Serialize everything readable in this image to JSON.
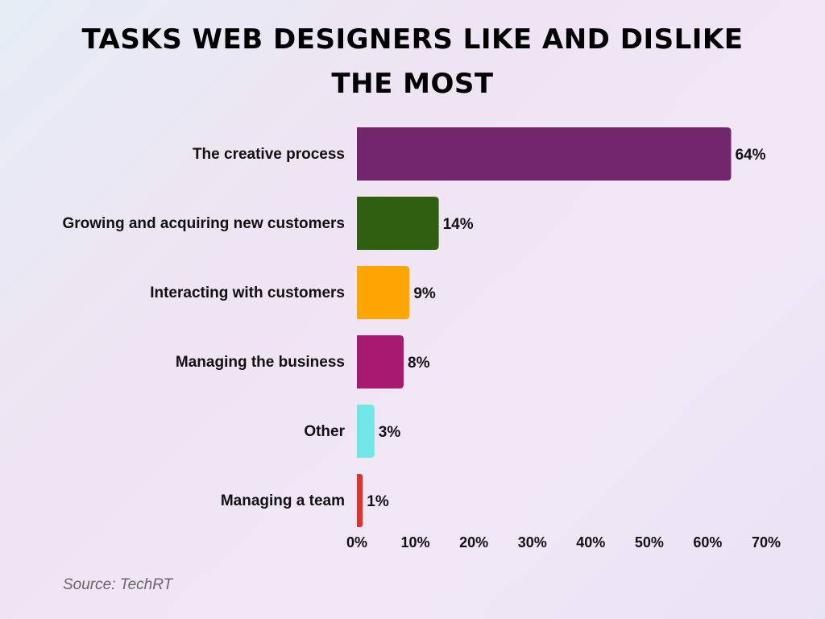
{
  "chart_data": {
    "type": "bar",
    "orientation": "horizontal",
    "title": "TASKS WEB DESIGNERS LIKE AND DISLIKE THE MOST",
    "categories": [
      "The creative process",
      "Growing and acquiring new customers",
      "Interacting with customers",
      "Managing the business",
      "Other",
      "Managing a team"
    ],
    "values": [
      64,
      14,
      9,
      8,
      3,
      1
    ],
    "value_labels": [
      "64%",
      "14%",
      "9%",
      "8%",
      "3%",
      "1%"
    ],
    "colors": [
      "#72266e",
      "#2f5f11",
      "#fca503",
      "#a81a72",
      "#71e6e6",
      "#d8362e"
    ],
    "x_ticks": [
      0,
      10,
      20,
      30,
      40,
      50,
      60,
      70
    ],
    "x_tick_labels": [
      "0%",
      "10%",
      "20%",
      "30%",
      "40%",
      "50%",
      "60%",
      "70%"
    ],
    "xlim": [
      0,
      70
    ],
    "grid": false,
    "legend": "none"
  },
  "source": "Source: TechRT"
}
